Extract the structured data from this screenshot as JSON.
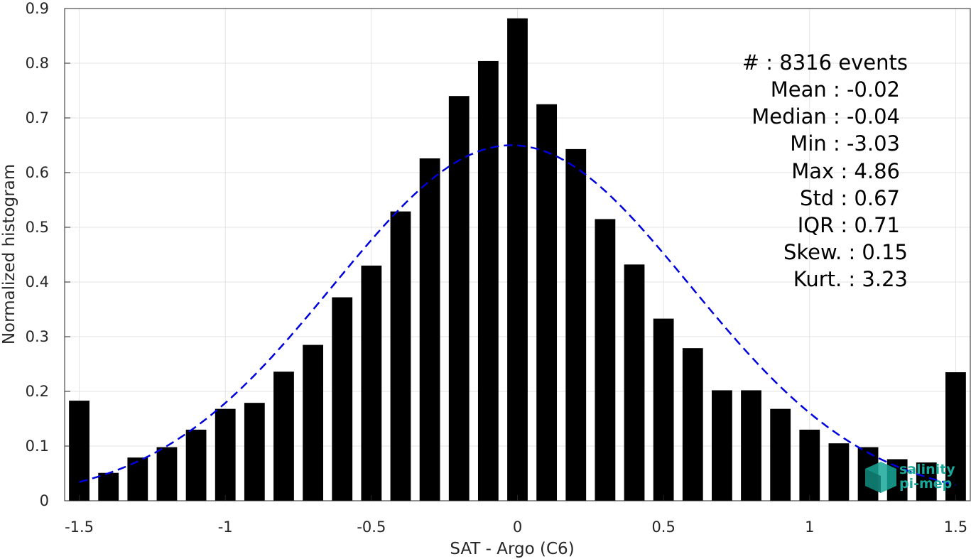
{
  "chart_data": {
    "type": "bar",
    "xlabel": "SAT - Argo (C6)",
    "ylabel": "Normalized histogram",
    "xlim": [
      -1.55,
      1.55
    ],
    "ylim": [
      0,
      0.9
    ],
    "xticks": [
      -1.5,
      -1,
      -0.5,
      0,
      0.5,
      1,
      1.5
    ],
    "xtick_labels": [
      "-1.5",
      "-1",
      "-0.5",
      "0",
      "0.5",
      "1",
      "1.5"
    ],
    "yticks": [
      0,
      0.1,
      0.2,
      0.3,
      0.4,
      0.5,
      0.6,
      0.7,
      0.8,
      0.9
    ],
    "ytick_labels": [
      "0",
      "0.1",
      "0.2",
      "0.3",
      "0.4",
      "0.5",
      "0.6",
      "0.7",
      "0.8",
      "0.9"
    ],
    "grid": true,
    "bar_color": "#000000",
    "bars": {
      "x": [
        -1.5,
        -1.4,
        -1.3,
        -1.2,
        -1.1,
        -1.0,
        -0.9,
        -0.8,
        -0.7,
        -0.6,
        -0.5,
        -0.4,
        -0.3,
        -0.2,
        -0.1,
        0.0,
        0.1,
        0.2,
        0.3,
        0.4,
        0.5,
        0.6,
        0.7,
        0.8,
        0.9,
        1.0,
        1.1,
        1.2,
        1.3,
        1.4,
        1.5
      ],
      "values": [
        0.183,
        0.051,
        0.079,
        0.098,
        0.13,
        0.168,
        0.179,
        0.236,
        0.285,
        0.372,
        0.43,
        0.529,
        0.626,
        0.74,
        0.804,
        0.882,
        0.725,
        0.643,
        0.515,
        0.432,
        0.333,
        0.279,
        0.202,
        0.202,
        0.168,
        0.13,
        0.105,
        0.098,
        0.076,
        0.07,
        0.235
      ]
    },
    "fit": {
      "type": "gaussian",
      "style": "dashed",
      "color": "#0000dd",
      "mean": -0.02,
      "std": 0.61,
      "peak": 0.65,
      "x_range": [
        -1.5,
        1.5
      ]
    }
  },
  "stats": {
    "lines": [
      "#  : 8316 events",
      "Mean : -0.02",
      "Median : -0.04",
      "Min : -3.03",
      "Max : 4.86",
      "Std : 0.67",
      "IQR : 0.71",
      "Skew. : 0.15",
      "Kurt. : 3.23"
    ]
  },
  "logo": {
    "line1": "salinity",
    "line2": "pi-mep",
    "color": "#1aa89a"
  }
}
